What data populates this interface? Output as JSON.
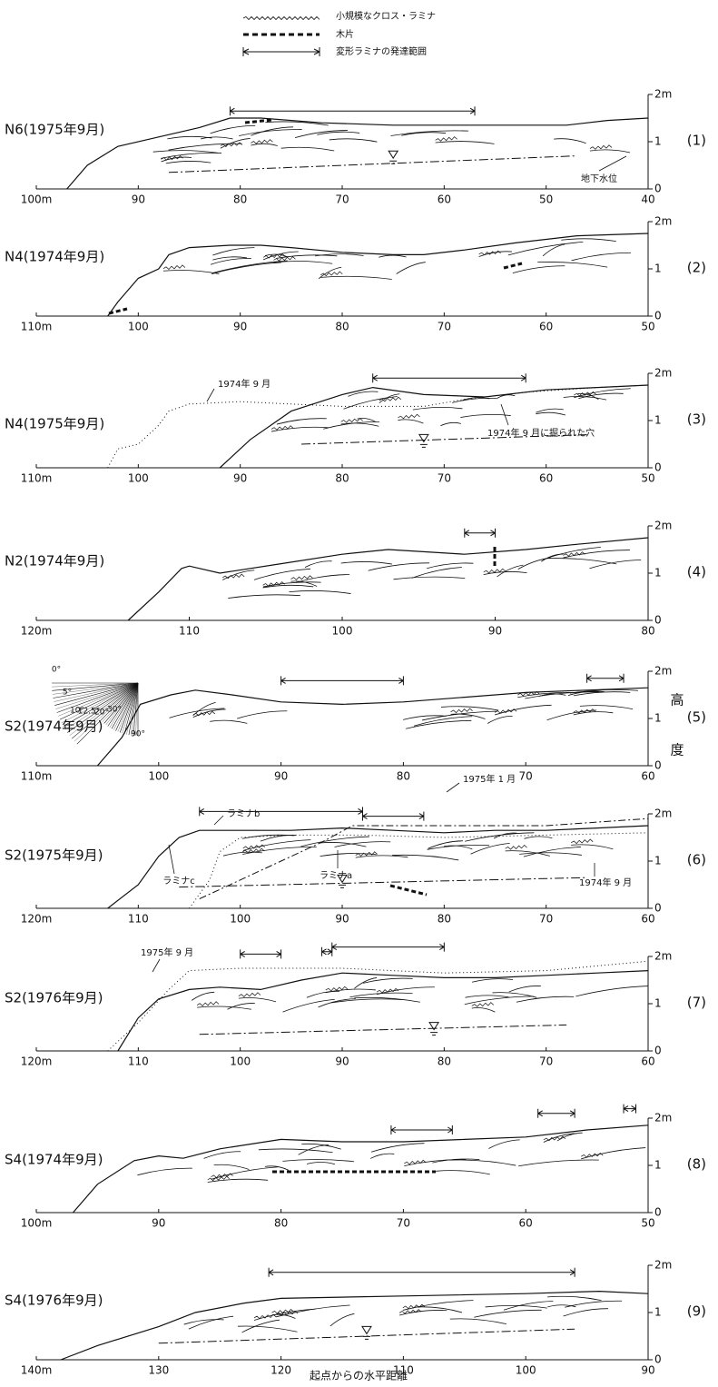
{
  "legend": [
    "小規模なクロス・ラミナ",
    "木片",
    "変形ラミナの発達範囲"
  ],
  "panels": [
    {
      "label": "N6(1975年9月)",
      "number": "(1)",
      "xticks": [
        "100m",
        "90",
        "80",
        "70",
        "60",
        "50",
        "40"
      ],
      "yticks": [
        "0",
        "1",
        "2m"
      ],
      "annotations": [
        "地下水位"
      ]
    },
    {
      "label": "N4(1974年9月)",
      "number": "(2)",
      "xticks": [
        "110m",
        "100",
        "90",
        "80",
        "70",
        "60",
        "50"
      ],
      "yticks": [
        "0",
        "1",
        "2m"
      ]
    },
    {
      "label": "N4(1975年9月)",
      "number": "(3)",
      "xticks": [
        "110m",
        "100",
        "90",
        "80",
        "70",
        "60",
        "50"
      ],
      "yticks": [
        "0",
        "1",
        "2m"
      ],
      "annotations": [
        "1974年 9 月",
        "1974年 9 月に掘られた穴"
      ]
    },
    {
      "label": "N2(1974年9月)",
      "number": "(4)",
      "xticks": [
        "120m",
        "110",
        "100",
        "90",
        "80"
      ],
      "yticks": [
        "0",
        "1",
        "2m"
      ]
    },
    {
      "label": "S2(1974年9月)",
      "number": "(5)",
      "xticks": [
        "110m",
        "100",
        "90",
        "80",
        "70",
        "60"
      ],
      "yticks": [
        "0",
        "1",
        "2m"
      ]
    },
    {
      "label": "S2(1975年9月)",
      "number": "(6)",
      "xticks": [
        "120m",
        "110",
        "100",
        "90",
        "80",
        "70",
        "60"
      ],
      "yticks": [
        "0",
        "1",
        "2m"
      ],
      "annotations": [
        "1975年 1 月",
        "ラミナb",
        "ラミナc",
        "ラミナa",
        "1974年 9 月"
      ]
    },
    {
      "label": "S2(1976年9月)",
      "number": "(7)",
      "xticks": [
        "120m",
        "110",
        "100",
        "90",
        "80",
        "70",
        "60"
      ],
      "yticks": [
        "0",
        "1",
        "2m"
      ],
      "annotations": [
        "1975年 9 月"
      ]
    },
    {
      "label": "S4(1974年9月)",
      "number": "(8)",
      "xticks": [
        "100m",
        "90",
        "80",
        "70",
        "60",
        "50"
      ],
      "yticks": [
        "0",
        "1",
        "2m"
      ]
    },
    {
      "label": "S4(1976年9月)",
      "number": "(9)",
      "xticks": [
        "140m",
        "130",
        "120",
        "110",
        "100",
        "90"
      ],
      "yticks": [
        "0",
        "1",
        "2m"
      ]
    }
  ],
  "angle_labels": [
    "0°",
    "5°",
    "10°",
    "12.5°",
    "20°",
    "30°",
    "90°"
  ],
  "y_axis_title": [
    "高",
    "度"
  ],
  "x_axis_title": "起点からの水平距離"
}
